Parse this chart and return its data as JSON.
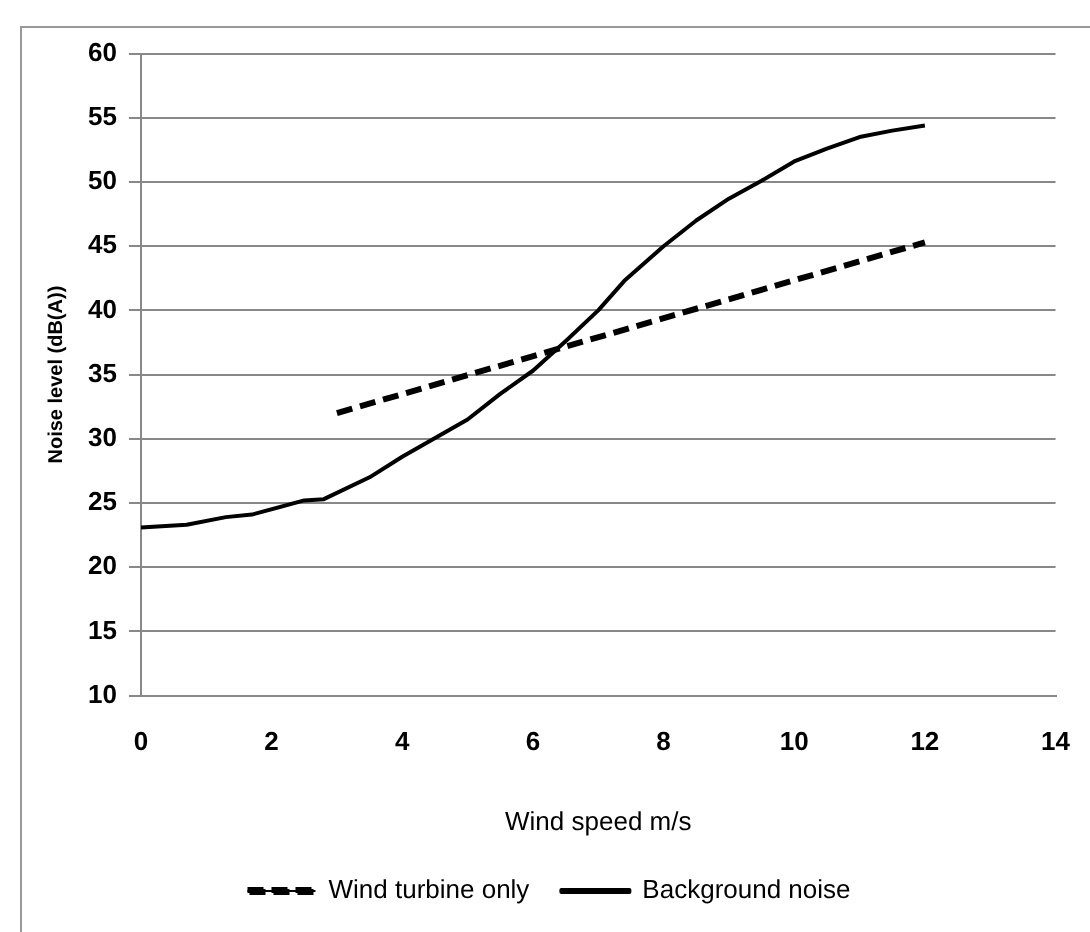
{
  "chart_data": {
    "type": "line",
    "xlabel": "Wind speed m/s",
    "ylabel": "Noise level (dB(A))",
    "xlim": [
      0,
      14
    ],
    "xticks": [
      0,
      2,
      4,
      6,
      8,
      10,
      12,
      14
    ],
    "ylim": [
      10,
      60
    ],
    "yticks": [
      10,
      15,
      20,
      25,
      30,
      35,
      40,
      45,
      50,
      55,
      60
    ],
    "grid": "y",
    "legend": "bottom",
    "marker": "none",
    "series": [
      {
        "name": "Wind turbine only",
        "color": "#000000",
        "line_style": "dashed",
        "x": [
          3,
          12
        ],
        "values": [
          32,
          45.3
        ]
      },
      {
        "name": "Background noise",
        "color": "#000000",
        "line_style": "solid",
        "x": [
          0,
          0.7,
          1.3,
          1.7,
          2.5,
          2.8,
          3.5,
          4,
          5,
          5.5,
          6,
          6.5,
          7,
          7.4,
          8,
          8.5,
          9,
          9.5,
          10,
          10.5,
          11,
          11.5,
          12
        ],
        "values": [
          23.1,
          23.3,
          23.9,
          24.1,
          25.2,
          25.3,
          27,
          28.6,
          31.5,
          33.5,
          35.3,
          37.6,
          40,
          42.3,
          45,
          47,
          48.7,
          50.1,
          51.6,
          52.6,
          53.5,
          54,
          54.4
        ]
      }
    ]
  }
}
